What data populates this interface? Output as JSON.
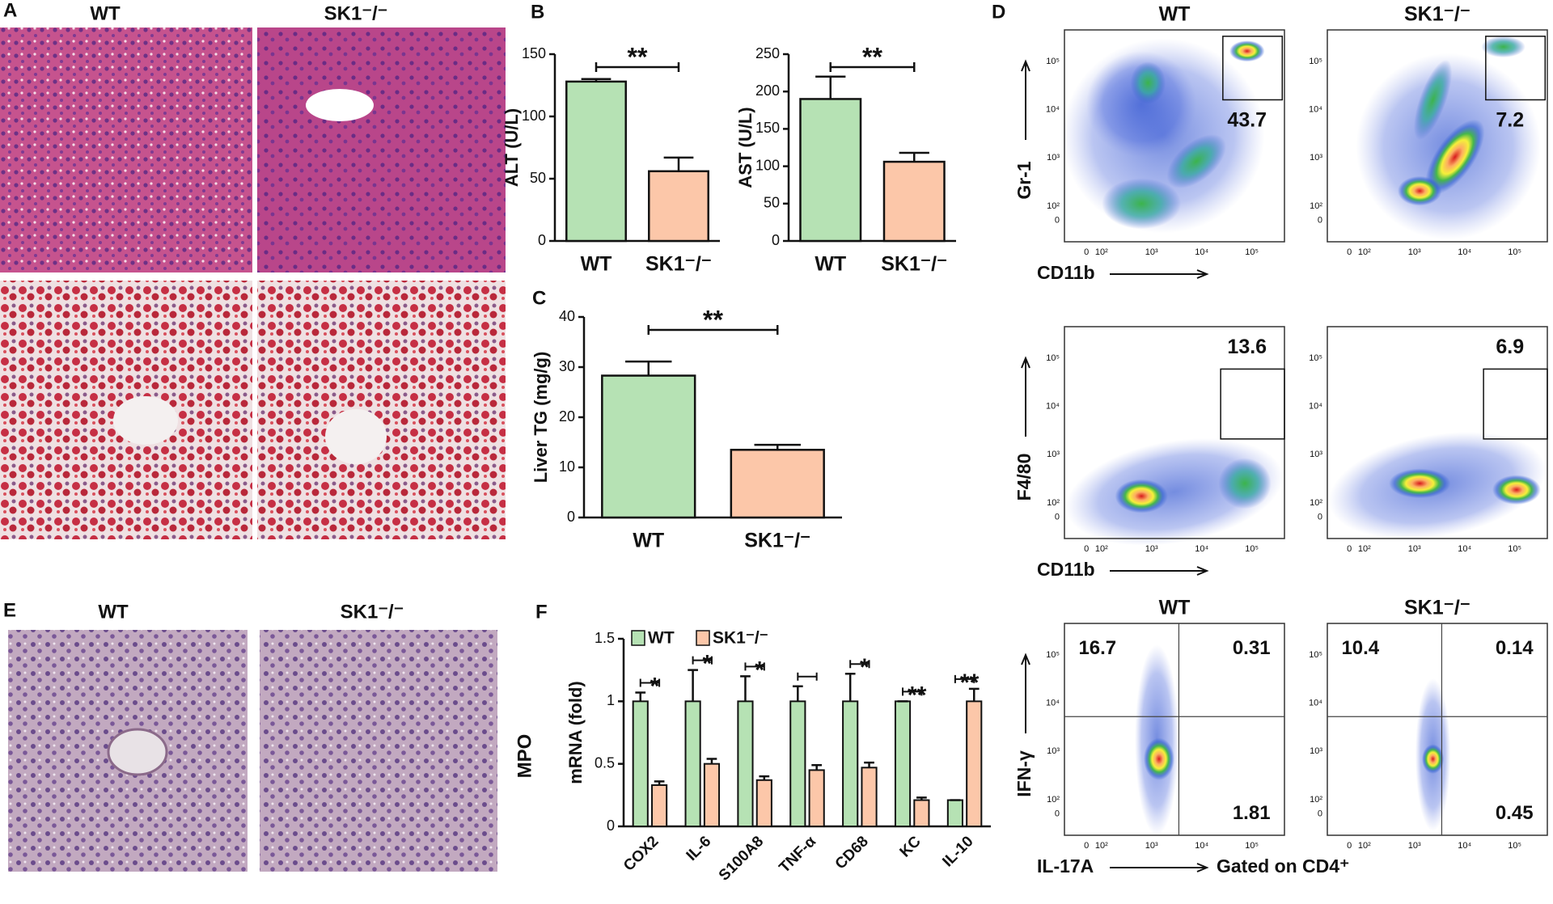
{
  "panels": [
    "A",
    "B",
    "C",
    "D",
    "E",
    "F"
  ],
  "histology": {
    "A_labels": [
      "WT",
      "SK1⁻/⁻"
    ],
    "E_labels": [
      "WT",
      "SK1⁻/⁻"
    ],
    "E_side_label": "MPO"
  },
  "chart_data": [
    {
      "type": "bar",
      "ylabel": "ALT (U/L)",
      "categories": [
        "WT",
        "SK1⁻/⁻"
      ],
      "values": [
        128,
        56
      ],
      "errors": [
        2,
        11
      ],
      "colors": [
        "#b6e2b4",
        "#fcc7a9"
      ],
      "ylim": [
        0,
        150
      ],
      "yticks": [
        0,
        50,
        100,
        150
      ],
      "significance": "**"
    },
    {
      "type": "bar",
      "ylabel": "AST (U/L)",
      "categories": [
        "WT",
        "SK1⁻/⁻"
      ],
      "values": [
        190,
        106
      ],
      "errors": [
        30,
        12
      ],
      "colors": [
        "#b6e2b4",
        "#fcc7a9"
      ],
      "ylim": [
        0,
        250
      ],
      "yticks": [
        0,
        50,
        100,
        150,
        200,
        250
      ],
      "significance": "**"
    },
    {
      "type": "bar",
      "ylabel": "Liver TG (mg/g)",
      "categories": [
        "WT",
        "SK1⁻/⁻"
      ],
      "values": [
        28.3,
        13.5
      ],
      "errors": [
        2.8,
        1
      ],
      "colors": [
        "#b6e2b4",
        "#fcc7a9"
      ],
      "ylim": [
        0,
        40
      ],
      "yticks": [
        0,
        10,
        20,
        30,
        40
      ],
      "significance": "**"
    },
    {
      "type": "bar",
      "ylabel": "mRNA (fold)",
      "categories": [
        "COX2",
        "IL-6",
        "S100A8",
        "TNF-α",
        "CD68",
        "KC",
        "IL-10"
      ],
      "series": [
        {
          "name": "WT",
          "color": "#b6e2b4",
          "values": [
            1,
            1,
            1,
            1,
            1,
            1,
            0.21
          ],
          "errors": [
            0.07,
            0.25,
            0.2,
            0.12,
            0.22,
            0,
            0
          ]
        },
        {
          "name": "SK1⁻/⁻",
          "color": "#fcc7a9",
          "values": [
            0.33,
            0.5,
            0.37,
            0.45,
            0.47,
            0.21,
            1
          ],
          "errors": [
            0.03,
            0.04,
            0.03,
            0.04,
            0.04,
            0.02,
            0.1
          ]
        }
      ],
      "ylim": [
        0,
        1.5
      ],
      "yticks": [
        0,
        0.5,
        1,
        1.5
      ],
      "significance": [
        "*",
        "*",
        "*",
        null,
        "*",
        "**",
        "**"
      ]
    }
  ],
  "flow_cytometry": {
    "axis_ticks": [
      {
        "value": 0,
        "label": "0"
      },
      {
        "value": 100,
        "label": "10²"
      },
      {
        "value": 1000,
        "label": "10³"
      },
      {
        "value": 10000,
        "label": "10⁴"
      },
      {
        "value": 100000,
        "label": "10⁵"
      }
    ],
    "rows": [
      {
        "column_labels": [
          "WT",
          "SK1⁻/⁻"
        ],
        "x_label": "CD11b",
        "y_label": "Gr-1",
        "plots": [
          {
            "gate": 43.7
          },
          {
            "gate": 7.2
          }
        ]
      },
      {
        "x_label": "CD11b",
        "y_label": "F4/80",
        "plots": [
          {
            "gate": 13.6
          },
          {
            "gate": 6.9
          }
        ]
      },
      {
        "column_labels": [
          "WT",
          "SK1⁻/⁻"
        ],
        "x_label": "IL-17A",
        "y_label": "IFN-γ",
        "note": "Gated on CD4⁺",
        "plots": [
          {
            "quadrants": {
              "upper_left": 16.7,
              "upper_right": 0.31,
              "lower_right": 1.81
            }
          },
          {
            "quadrants": {
              "upper_left": 10.4,
              "upper_right": 0.14,
              "lower_right": 0.45
            }
          }
        ]
      }
    ]
  }
}
